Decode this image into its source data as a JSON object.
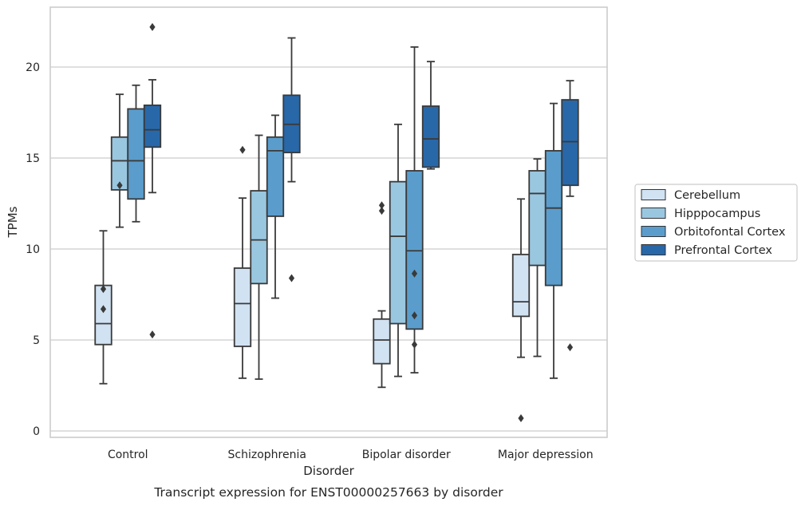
{
  "caption": "Transcript expression for ENST00000257663 by disorder",
  "chart_data": {
    "type": "box",
    "title": "",
    "xlabel": "Disorder",
    "ylabel": "TPMs",
    "ylim": [
      -0.3,
      23.3
    ],
    "yticks": [
      0,
      5,
      10,
      15,
      20
    ],
    "grid": "horizontal",
    "legend_position": "right",
    "categories": [
      "Control",
      "Schizophrenia",
      "Bipolar disorder",
      "Major depression"
    ],
    "series": [
      {
        "name": "Cerebellum",
        "color": "#d1e2f2",
        "boxes": [
          {
            "whislo": 2.6,
            "q1": 4.75,
            "med": 5.9,
            "q3": 8.0,
            "whishi": 11.0,
            "fliers": [
              7.8,
              6.7
            ]
          },
          {
            "whislo": 2.9,
            "q1": 4.65,
            "med": 7.0,
            "q3": 8.95,
            "whishi": 12.8,
            "fliers": [
              15.45
            ]
          },
          {
            "whislo": 2.4,
            "q1": 3.7,
            "med": 5.0,
            "q3": 6.15,
            "whishi": 6.6,
            "fliers": [
              12.4,
              12.1
            ]
          },
          {
            "whislo": 4.05,
            "q1": 6.3,
            "med": 7.1,
            "q3": 9.7,
            "whishi": 12.75,
            "fliers": [
              0.7
            ]
          }
        ]
      },
      {
        "name": "Hipppocampus",
        "color": "#9ac7e0",
        "boxes": [
          {
            "whislo": 11.2,
            "q1": 13.25,
            "med": 14.85,
            "q3": 16.15,
            "whishi": 18.5,
            "fliers": [
              13.5
            ]
          },
          {
            "whislo": 2.85,
            "q1": 8.1,
            "med": 10.5,
            "q3": 13.2,
            "whishi": 16.25,
            "fliers": []
          },
          {
            "whislo": 3.0,
            "q1": 5.9,
            "med": 10.7,
            "q3": 13.7,
            "whishi": 16.85,
            "fliers": []
          },
          {
            "whislo": 4.1,
            "q1": 9.1,
            "med": 13.05,
            "q3": 14.3,
            "whishi": 14.95,
            "fliers": []
          }
        ]
      },
      {
        "name": "Orbitofontal Cortex",
        "color": "#5a9dcc",
        "boxes": [
          {
            "whislo": 11.5,
            "q1": 12.75,
            "med": 14.85,
            "q3": 17.7,
            "whishi": 19.0,
            "fliers": []
          },
          {
            "whislo": 7.3,
            "q1": 11.8,
            "med": 15.4,
            "q3": 16.15,
            "whishi": 17.35,
            "fliers": []
          },
          {
            "whislo": 3.2,
            "q1": 5.6,
            "med": 9.9,
            "q3": 14.3,
            "whishi": 21.1,
            "fliers": [
              8.65,
              6.35,
              4.75
            ]
          },
          {
            "whislo": 2.9,
            "q1": 8.0,
            "med": 12.25,
            "q3": 15.4,
            "whishi": 18.0,
            "fliers": []
          }
        ]
      },
      {
        "name": "Prefrontal Cortex",
        "color": "#2868a9",
        "boxes": [
          {
            "whislo": 13.1,
            "q1": 15.6,
            "med": 16.55,
            "q3": 17.9,
            "whishi": 19.3,
            "fliers": [
              22.2,
              5.3
            ]
          },
          {
            "whislo": 13.7,
            "q1": 15.3,
            "med": 16.85,
            "q3": 18.45,
            "whishi": 21.6,
            "fliers": [
              8.4
            ]
          },
          {
            "whislo": 14.4,
            "q1": 14.5,
            "med": 16.05,
            "q3": 17.85,
            "whishi": 20.3,
            "fliers": []
          },
          {
            "whislo": 12.9,
            "q1": 13.5,
            "med": 15.9,
            "q3": 18.2,
            "whishi": 19.25,
            "fliers": [
              4.6
            ]
          }
        ]
      }
    ]
  }
}
